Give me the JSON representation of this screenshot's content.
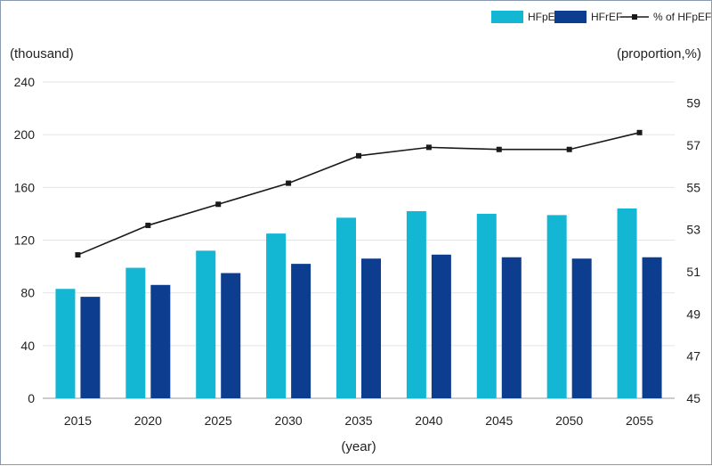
{
  "chart_data": {
    "type": "bar+line",
    "categories": [
      "2015",
      "2020",
      "2025",
      "2030",
      "2035",
      "2040",
      "2045",
      "2050",
      "2055"
    ],
    "series": [
      {
        "name": "HFpEF",
        "type": "bar",
        "axis": "left",
        "color": "#13b6d3",
        "values": [
          83,
          99,
          112,
          125,
          137,
          142,
          140,
          139,
          144
        ]
      },
      {
        "name": "HFrEF",
        "type": "bar",
        "axis": "left",
        "color": "#0d3d8e",
        "values": [
          77,
          86,
          95,
          102,
          106,
          109,
          107,
          106,
          107
        ]
      },
      {
        "name": "% of HFpEF",
        "type": "line",
        "axis": "right",
        "color": "#1a1a1a",
        "values": [
          51.8,
          53.2,
          54.2,
          55.2,
          56.5,
          56.9,
          56.8,
          56.8,
          57.6
        ]
      }
    ],
    "left_axis": {
      "label": "(thousand)",
      "ylim": [
        0,
        240
      ],
      "ticks": [
        0,
        40,
        80,
        120,
        160,
        200,
        240
      ]
    },
    "right_axis": {
      "label": "(proportion,%)",
      "ylim": [
        45,
        60
      ],
      "ticks": [
        45,
        47,
        49,
        51,
        53,
        55,
        57,
        59
      ]
    },
    "xlabel": "(year)",
    "grid": "horizontal",
    "legend": {
      "position": "top-right",
      "entries": [
        "HFpEF",
        "HFrEF",
        "% of HFpEF"
      ]
    }
  }
}
